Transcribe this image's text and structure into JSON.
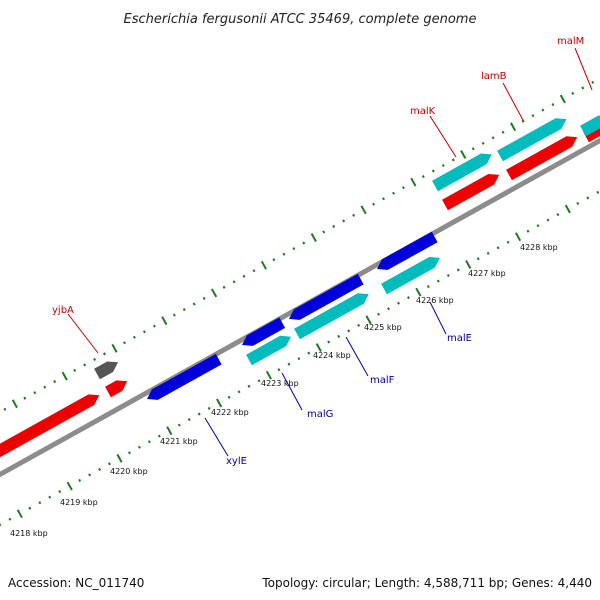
{
  "title": "Escherichia fergusonii ATCC 35469, complete genome",
  "footer": {
    "accession": "Accession: NC_011740",
    "summary": "Topology: circular; Length: 4,588,711 bp; Genes: 4,440"
  },
  "colors": {
    "backbone": "#8c8c8c",
    "tick": "#1f7a1f",
    "forward_cds": "#00bcbc",
    "reverse_cds": "#0000dd",
    "forward_other": "#ee0000",
    "reverse_other": "#ee0000",
    "pseudo": "#555555",
    "label_forward": "#cc0000",
    "label_reverse": "#0000aa"
  },
  "scale_labels": [
    "4218 kbp",
    "4219 kbp",
    "4220 kbp",
    "4221 kbp",
    "4222 kbp",
    "4223 kbp",
    "4224 kbp",
    "4225 kbp",
    "4226 kbp",
    "4227 kbp",
    "4228 kbp"
  ],
  "gene_labels": {
    "yjbA": "yjbA",
    "malK": "malK",
    "lamB": "lamB",
    "malM": "malM",
    "xylE": "xylE",
    "malG": "malG",
    "malF": "malF",
    "malE": "malE"
  }
}
